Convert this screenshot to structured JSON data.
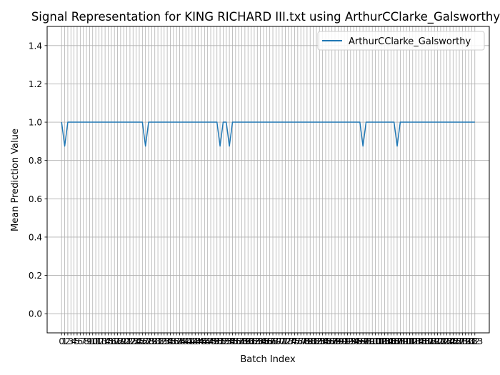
{
  "chart_data": {
    "type": "line",
    "title": "Signal Representation for KING RICHARD III.txt using ArthurCClarke_Galsworthy",
    "xlabel": "Batch Index",
    "ylabel": "Mean Prediction Value",
    "xlim": [
      -4.65,
      137.65
    ],
    "ylim": [
      -0.1,
      1.5
    ],
    "yticks": [
      "0.0",
      "0.2",
      "0.4",
      "0.6",
      "0.8",
      "1.0",
      "1.2",
      "1.4"
    ],
    "grid": true,
    "legend": {
      "position": "top-right",
      "entries": [
        "ArthurCClarke_Galsworthy"
      ]
    },
    "series": [
      {
        "name": "ArthurCClarke_Galsworthy",
        "color": "#1f77b4",
        "x_start": 0,
        "x_end": 133,
        "baseline": 1.0,
        "dips": [
          {
            "x": 1,
            "value": 0.875
          },
          {
            "x": 27,
            "value": 0.875
          },
          {
            "x": 51,
            "value": 0.875
          },
          {
            "x": 54,
            "value": 0.875
          },
          {
            "x": 97,
            "value": 0.875
          },
          {
            "x": 108,
            "value": 0.875
          }
        ]
      }
    ]
  }
}
